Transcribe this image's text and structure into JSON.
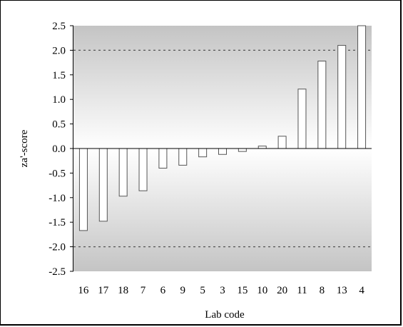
{
  "chart_data": {
    "type": "bar",
    "title": "",
    "xlabel": "Lab code",
    "ylabel": "za'-score",
    "categories": [
      "16",
      "17",
      "18",
      "7",
      "6",
      "9",
      "5",
      "3",
      "15",
      "10",
      "20",
      "11",
      "8",
      "13",
      "4"
    ],
    "values": [
      -1.67,
      -1.48,
      -0.97,
      -0.86,
      -0.4,
      -0.34,
      -0.17,
      -0.12,
      -0.06,
      0.05,
      0.25,
      1.21,
      1.78,
      2.1,
      2.55
    ],
    "ylim": [
      -2.5,
      2.5
    ],
    "yticks": [
      "2.5",
      "2.0",
      "1.5",
      "1.0",
      "0.5",
      "0.0",
      "-0.5",
      "-1.0",
      "-1.5",
      "-2.0",
      "-2.5"
    ],
    "ytick_values": [
      2.5,
      2.0,
      1.5,
      1.0,
      0.5,
      0.0,
      -0.5,
      -1.0,
      -1.5,
      -2.0,
      -2.5
    ],
    "reference_lines": [
      2.0,
      -2.0
    ],
    "grid": false,
    "legend": "none",
    "colors": {
      "bar_fill": "#ffffff",
      "bar_stroke": "#555555",
      "plot_bg_edge": "#c4c4c4",
      "plot_bg_center": "#ffffff",
      "reference_line": "#555555"
    }
  }
}
